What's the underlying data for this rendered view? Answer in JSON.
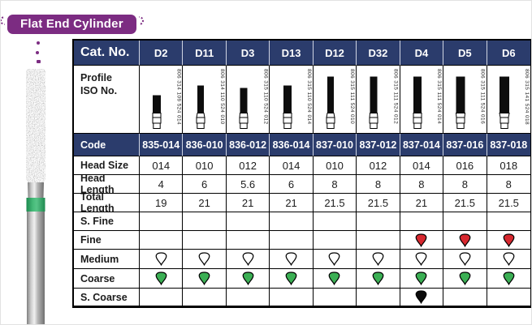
{
  "page": {
    "title_badge": "Flat End Cylinder"
  },
  "colors": {
    "navy_header": "#2b3c6c",
    "ribbon_purple": "#7c2c82",
    "diamond_green": "#3baf54",
    "diamond_red": "#d7282f",
    "diamond_black": "#0b0b0b",
    "diamond_white": "#ffffff",
    "bur_band_green": "#2aa45e"
  },
  "table": {
    "corner_label": "Cat. No.",
    "profile_label_line1": "Profile",
    "profile_label_line2": "ISO No.",
    "row_labels": {
      "code": "Code",
      "head_size": "Head Size",
      "head_length": "Head Length",
      "total_length": "Total Length",
      "s_fine": "S. Fine",
      "fine": "Fine",
      "medium": "Medium",
      "coarse": "Coarse",
      "s_coarse": "S. Coarse"
    },
    "grit_row_order": [
      "s_fine",
      "fine",
      "medium",
      "coarse",
      "s_coarse"
    ],
    "columns": [
      {
        "cat": "D2",
        "iso": "806 314 109 524 014",
        "code": "835-014",
        "head_size": "014",
        "head_length": "4",
        "total_length": "19",
        "grits": {
          "s_fine": "",
          "fine": "",
          "medium": "white",
          "coarse": "green",
          "s_coarse": ""
        }
      },
      {
        "cat": "D11",
        "iso": "806 314 110 524 010",
        "code": "836-010",
        "head_size": "010",
        "head_length": "6",
        "total_length": "21",
        "grits": {
          "s_fine": "",
          "fine": "",
          "medium": "white",
          "coarse": "green",
          "s_coarse": ""
        }
      },
      {
        "cat": "D3",
        "iso": "806 315 110 524 012",
        "code": "836-012",
        "head_size": "012",
        "head_length": "5.6",
        "total_length": "21",
        "grits": {
          "s_fine": "",
          "fine": "",
          "medium": "white",
          "coarse": "green",
          "s_coarse": ""
        }
      },
      {
        "cat": "D13",
        "iso": "806 315 110 524 014",
        "code": "836-014",
        "head_size": "014",
        "head_length": "6",
        "total_length": "21",
        "grits": {
          "s_fine": "",
          "fine": "",
          "medium": "white",
          "coarse": "green",
          "s_coarse": ""
        }
      },
      {
        "cat": "D12",
        "iso": "806 315 111 524 010",
        "code": "837-010",
        "head_size": "010",
        "head_length": "8",
        "total_length": "21.5",
        "grits": {
          "s_fine": "",
          "fine": "",
          "medium": "white",
          "coarse": "green",
          "s_coarse": ""
        }
      },
      {
        "cat": "D32",
        "iso": "806 315 111 524 012",
        "code": "837-012",
        "head_size": "012",
        "head_length": "8",
        "total_length": "21.5",
        "grits": {
          "s_fine": "",
          "fine": "",
          "medium": "white",
          "coarse": "green",
          "s_coarse": ""
        }
      },
      {
        "cat": "D4",
        "iso": "806 315 111 524 014",
        "code": "837-014",
        "head_size": "014",
        "head_length": "8",
        "total_length": "21",
        "grits": {
          "s_fine": "",
          "fine": "red",
          "medium": "white",
          "coarse": "green",
          "s_coarse": "black"
        }
      },
      {
        "cat": "D5",
        "iso": "806 315 111 524 016",
        "code": "837-016",
        "head_size": "016",
        "head_length": "8",
        "total_length": "21.5",
        "grits": {
          "s_fine": "",
          "fine": "red",
          "medium": "white",
          "coarse": "green",
          "s_coarse": ""
        }
      },
      {
        "cat": "D6",
        "iso": "806 315 141 524 018",
        "code": "837-018",
        "head_size": "018",
        "head_length": "8",
        "total_length": "21.5",
        "grits": {
          "s_fine": "",
          "fine": "red",
          "medium": "white",
          "coarse": "green",
          "s_coarse": ""
        }
      }
    ]
  }
}
